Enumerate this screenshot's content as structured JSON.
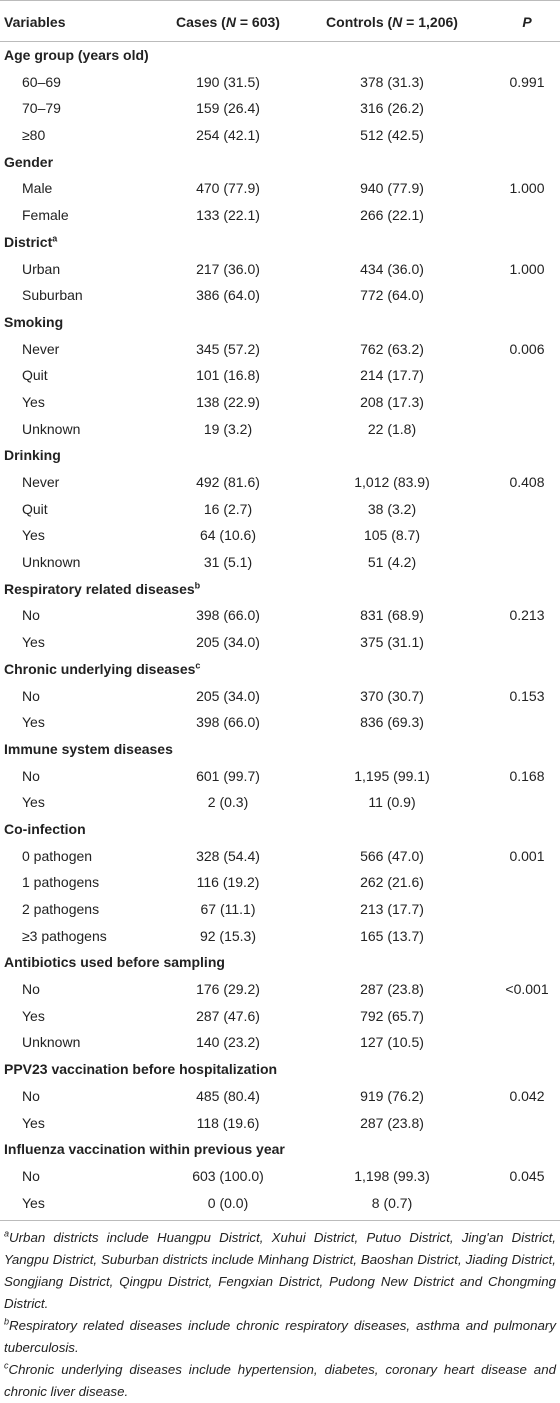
{
  "header": {
    "variables": "Variables",
    "cases": [
      "Cases (",
      "N",
      " = 603)"
    ],
    "controls": [
      "Controls (",
      "N",
      " = 1,206)"
    ],
    "p": "P"
  },
  "sections": [
    {
      "title": "Age group (years old)",
      "rows": [
        {
          "label": "60–69",
          "cases": "190 (31.5)",
          "controls": "378 (31.3)",
          "p": "0.991"
        },
        {
          "label": "70–79",
          "cases": "159 (26.4)",
          "controls": "316 (26.2)"
        },
        {
          "label": "≥80",
          "cases": "254 (42.1)",
          "controls": "512 (42.5)"
        }
      ]
    },
    {
      "title": "Gender",
      "rows": [
        {
          "label": "Male",
          "cases": "470 (77.9)",
          "controls": "940 (77.9)",
          "p": "1.000"
        },
        {
          "label": "Female",
          "cases": "133 (22.1)",
          "controls": "266 (22.1)"
        }
      ]
    },
    {
      "title": "District",
      "note": "a",
      "rows": [
        {
          "label": "Urban",
          "cases": "217 (36.0)",
          "controls": "434 (36.0)",
          "p": "1.000"
        },
        {
          "label": "Suburban",
          "cases": "386 (64.0)",
          "controls": "772 (64.0)"
        }
      ]
    },
    {
      "title": "Smoking",
      "rows": [
        {
          "label": "Never",
          "cases": "345 (57.2)",
          "controls": "762 (63.2)",
          "p": "0.006"
        },
        {
          "label": "Quit",
          "cases": "101 (16.8)",
          "controls": "214 (17.7)"
        },
        {
          "label": "Yes",
          "cases": "138 (22.9)",
          "controls": "208 (17.3)"
        },
        {
          "label": "Unknown",
          "cases": "19 (3.2)",
          "controls": "22 (1.8)"
        }
      ]
    },
    {
      "title": "Drinking",
      "rows": [
        {
          "label": "Never",
          "cases": "492 (81.6)",
          "controls": "1,012 (83.9)",
          "p": "0.408"
        },
        {
          "label": "Quit",
          "cases": "16 (2.7)",
          "controls": "38 (3.2)"
        },
        {
          "label": "Yes",
          "cases": "64 (10.6)",
          "controls": "105 (8.7)"
        },
        {
          "label": "Unknown",
          "cases": "31 (5.1)",
          "controls": "51 (4.2)"
        }
      ]
    },
    {
      "title": "Respiratory related diseases",
      "note": "b",
      "rows": [
        {
          "label": "No",
          "cases": "398 (66.0)",
          "controls": "831 (68.9)",
          "p": "0.213"
        },
        {
          "label": "Yes",
          "cases": "205 (34.0)",
          "controls": "375 (31.1)"
        }
      ]
    },
    {
      "title": "Chronic underlying diseases",
      "note": "c",
      "rows": [
        {
          "label": "No",
          "cases": "205 (34.0)",
          "controls": "370 (30.7)",
          "p": "0.153"
        },
        {
          "label": "Yes",
          "cases": "398 (66.0)",
          "controls": "836 (69.3)"
        }
      ]
    },
    {
      "title": "Immune system diseases",
      "rows": [
        {
          "label": "No",
          "cases": "601 (99.7)",
          "controls": "1,195 (99.1)",
          "p": "0.168"
        },
        {
          "label": "Yes",
          "cases": "2 (0.3)",
          "controls": "11 (0.9)"
        }
      ]
    },
    {
      "title": "Co-infection",
      "rows": [
        {
          "label": "0 pathogen",
          "cases": "328 (54.4)",
          "controls": "566 (47.0)",
          "p": "0.001"
        },
        {
          "label": "1 pathogens",
          "cases": "116 (19.2)",
          "controls": "262 (21.6)"
        },
        {
          "label": "2 pathogens",
          "cases": "67 (11.1)",
          "controls": "213 (17.7)"
        },
        {
          "label": "≥3 pathogens",
          "cases": "92 (15.3)",
          "controls": "165 (13.7)"
        }
      ]
    },
    {
      "title": "Antibiotics used before sampling",
      "rows": [
        {
          "label": "No",
          "cases": "176 (29.2)",
          "controls": "287 (23.8)",
          "p": "<0.001"
        },
        {
          "label": "Yes",
          "cases": "287 (47.6)",
          "controls": "792 (65.7)"
        },
        {
          "label": "Unknown",
          "cases": "140 (23.2)",
          "controls": "127 (10.5)"
        }
      ]
    },
    {
      "title": "PPV23 vaccination before hospitalization",
      "rows": [
        {
          "label": "No",
          "cases": "485 (80.4)",
          "controls": "919 (76.2)",
          "p": "0.042"
        },
        {
          "label": "Yes",
          "cases": "118 (19.6)",
          "controls": "287 (23.8)"
        }
      ]
    },
    {
      "title": "Influenza vaccination within previous year",
      "rows": [
        {
          "label": "No",
          "cases": "603 (100.0)",
          "controls": "1,198 (99.3)",
          "p": "0.045"
        },
        {
          "label": "Yes",
          "cases": "0 (0.0)",
          "controls": "8 (0.7)"
        }
      ]
    }
  ],
  "footnotes": [
    {
      "marker": "a",
      "text": "Urban districts include Huangpu District, Xuhui District, Putuo District, Jing'an District, Yangpu District, Suburban districts include Minhang District, Baoshan District, Jiading District, Songjiang District, Qingpu District, Fengxian District, Pudong New District and Chongming District."
    },
    {
      "marker": "b",
      "text": "Respiratory related diseases include chronic respiratory diseases, asthma and pulmonary tuberculosis."
    },
    {
      "marker": "c",
      "text": "Chronic underlying diseases include hypertension, diabetes, coronary heart disease and chronic liver disease."
    }
  ]
}
